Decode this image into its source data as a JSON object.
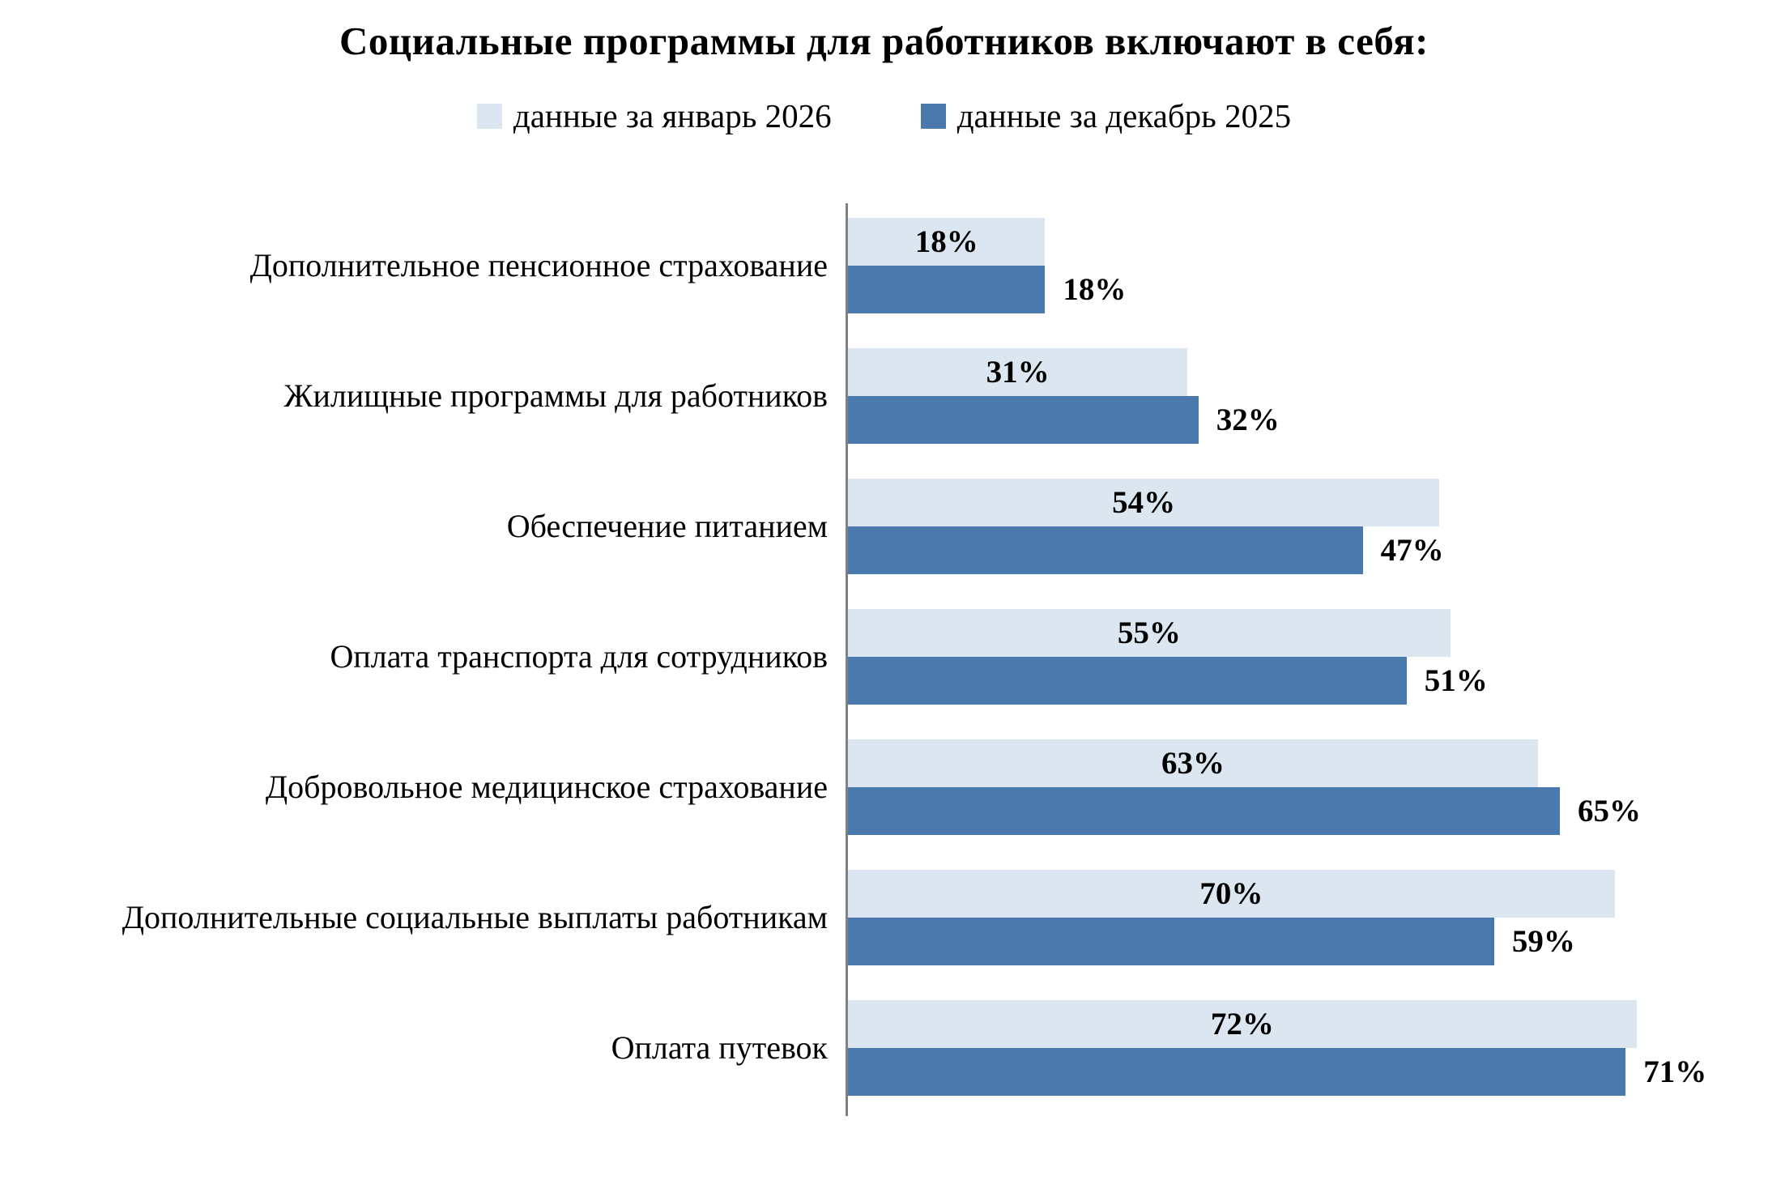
{
  "chart_data": {
    "type": "bar",
    "orientation": "horizontal",
    "title": "Социальные программы для работников включают в себя:",
    "categories": [
      "Дополнительное пенсионное страхование",
      "Жилищные программы для работников",
      "Обеспечение питанием",
      "Оплата транспорта для сотрудников",
      "Добровольное медицинское страхование",
      "Дополнительные социальные выплаты работникам",
      "Оплата путевок"
    ],
    "series": [
      {
        "name": "данные за январь 2026",
        "color": "#dce6f1",
        "values": [
          18,
          31,
          54,
          55,
          63,
          70,
          72
        ],
        "label_placement": "inside-center"
      },
      {
        "name": "данные за декабрь 2025",
        "color": "#4a79ad",
        "values": [
          18,
          32,
          47,
          51,
          65,
          59,
          71
        ],
        "label_placement": "outside-end"
      }
    ],
    "value_suffix": "%",
    "xlim": [
      0,
      84
    ],
    "grid": false,
    "legend_position": "top",
    "axis_color": "#808080",
    "text_color": "#000000"
  }
}
